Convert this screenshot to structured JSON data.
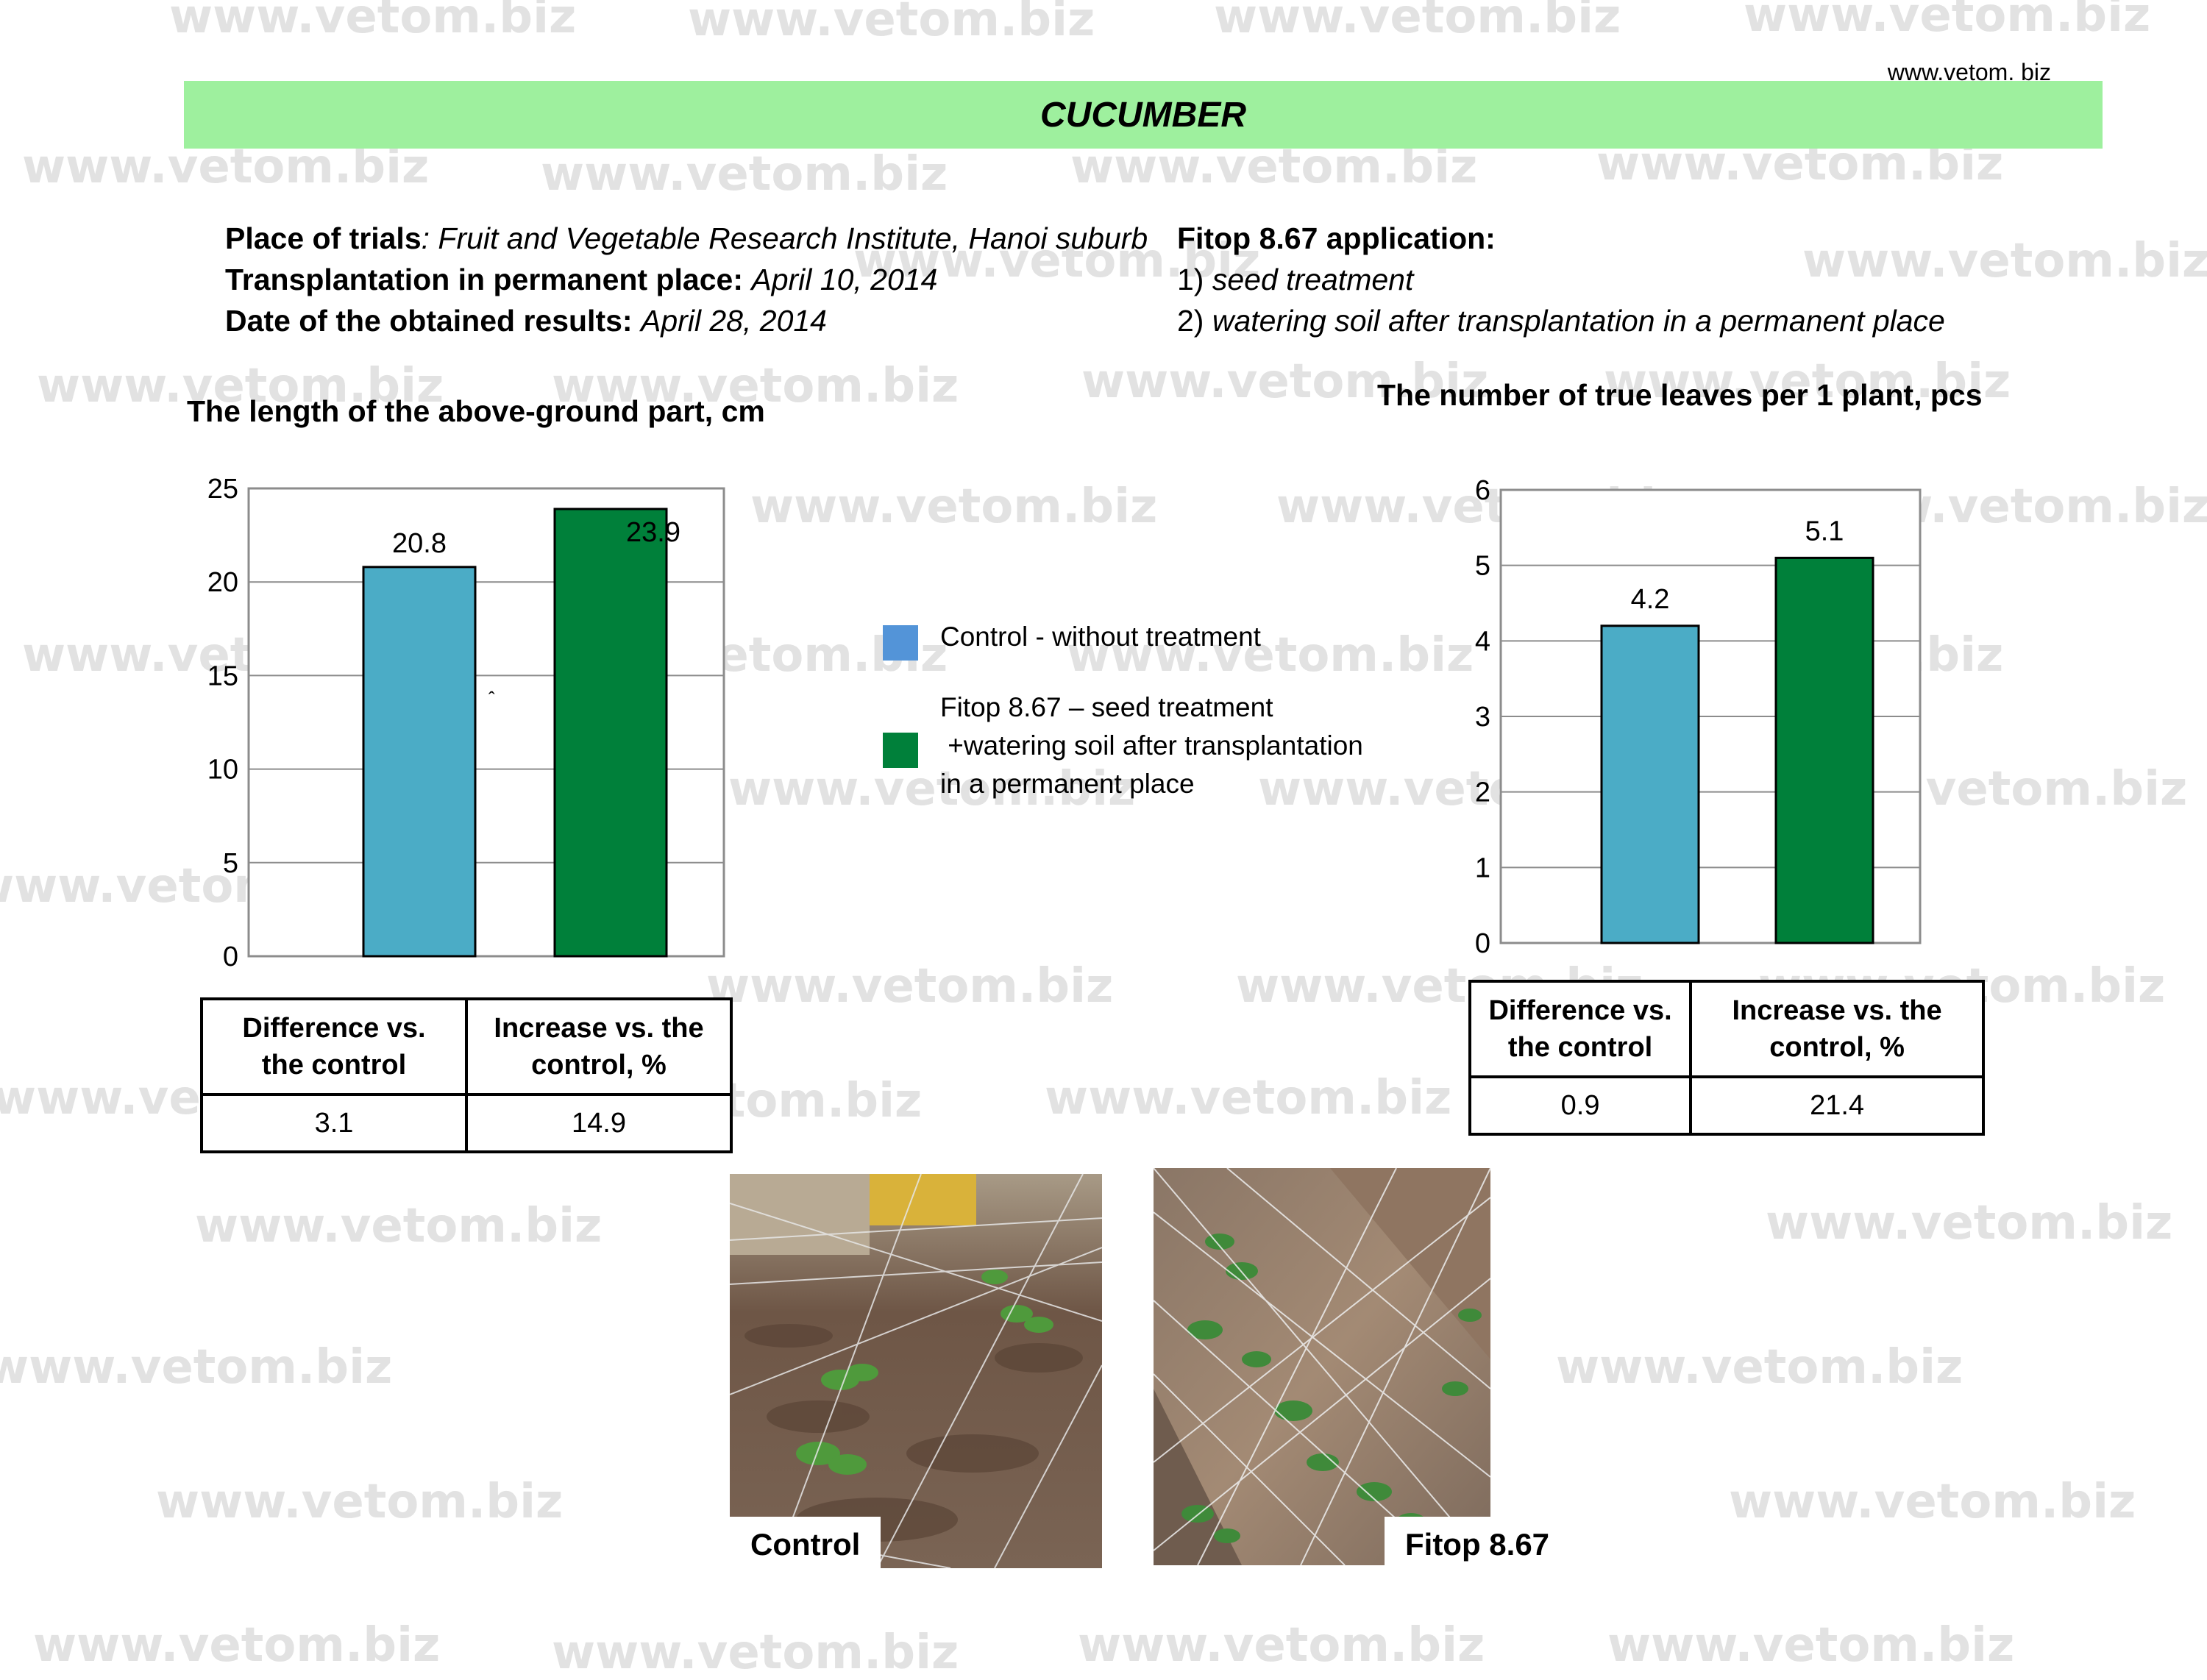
{
  "watermark": "www.vetom.biz",
  "site_url": "www.vetom. biz",
  "header": {
    "title": "CUCUMBER"
  },
  "trial_info": {
    "place_label": "Place of trials",
    "place_value": ": Fruit and Vegetable Research Institute, Hanoi suburb",
    "transplant_label": "Transplantation in permanent place:",
    "transplant_value": "April  10, 2014",
    "results_label": "Date of  the obtained results:",
    "results_value": "April 28, 2014"
  },
  "application": {
    "title": "Fitop 8.67 application:",
    "step1_num": "1) ",
    "step1": "seed treatment",
    "step2_num": "2) ",
    "step2": "watering soil after transplantation in a permanent place"
  },
  "legend": {
    "items": [
      {
        "label": "Control - without treatment",
        "color": "#5394d8"
      },
      {
        "label": "Fitop 8.67 – seed treatment",
        "label2": " +watering soil after transplantation",
        "label3": "in a permanent place",
        "color": "#00803a"
      }
    ]
  },
  "chart_data": [
    {
      "type": "bar",
      "title": "The length of the above-ground part, cm",
      "series": [
        {
          "values": [
            20.8
          ],
          "color": "#4bacc6"
        },
        {
          "values": [
            23.9
          ],
          "color": "#00803a"
        }
      ],
      "y_ticks": [
        "0",
        "5",
        "10",
        "15",
        "20",
        "25"
      ],
      "ylim": [
        0,
        25
      ],
      "data_labels": [
        "20.8",
        "23.9"
      ],
      "grid": true
    },
    {
      "type": "bar",
      "title": "The number of true leaves per 1 plant, pcs",
      "series": [
        {
          "values": [
            4.2
          ],
          "color": "#4bacc6"
        },
        {
          "values": [
            5.1
          ],
          "color": "#00803a"
        }
      ],
      "y_ticks": [
        "0",
        "1",
        "2",
        "3",
        "4",
        "5",
        "6"
      ],
      "ylim": [
        0,
        6
      ],
      "data_labels": [
        "4.2",
        "5.1"
      ],
      "grid": true
    }
  ],
  "tables": [
    {
      "h1a": "Difference vs.",
      "h1b": "the control",
      "h2a": "Increase vs. the",
      "h2b": "control, %",
      "v1": "3.1",
      "v2": "14.9"
    },
    {
      "h1a": "Difference vs.",
      "h1b": "the control",
      "h2a": "Increase vs. the",
      "h2b": "control, %",
      "v1": "0.9",
      "v2": "21.4"
    }
  ],
  "photos": {
    "control": "Control",
    "treated": "Fitop 8.67"
  },
  "stray_mark": "ˆ"
}
